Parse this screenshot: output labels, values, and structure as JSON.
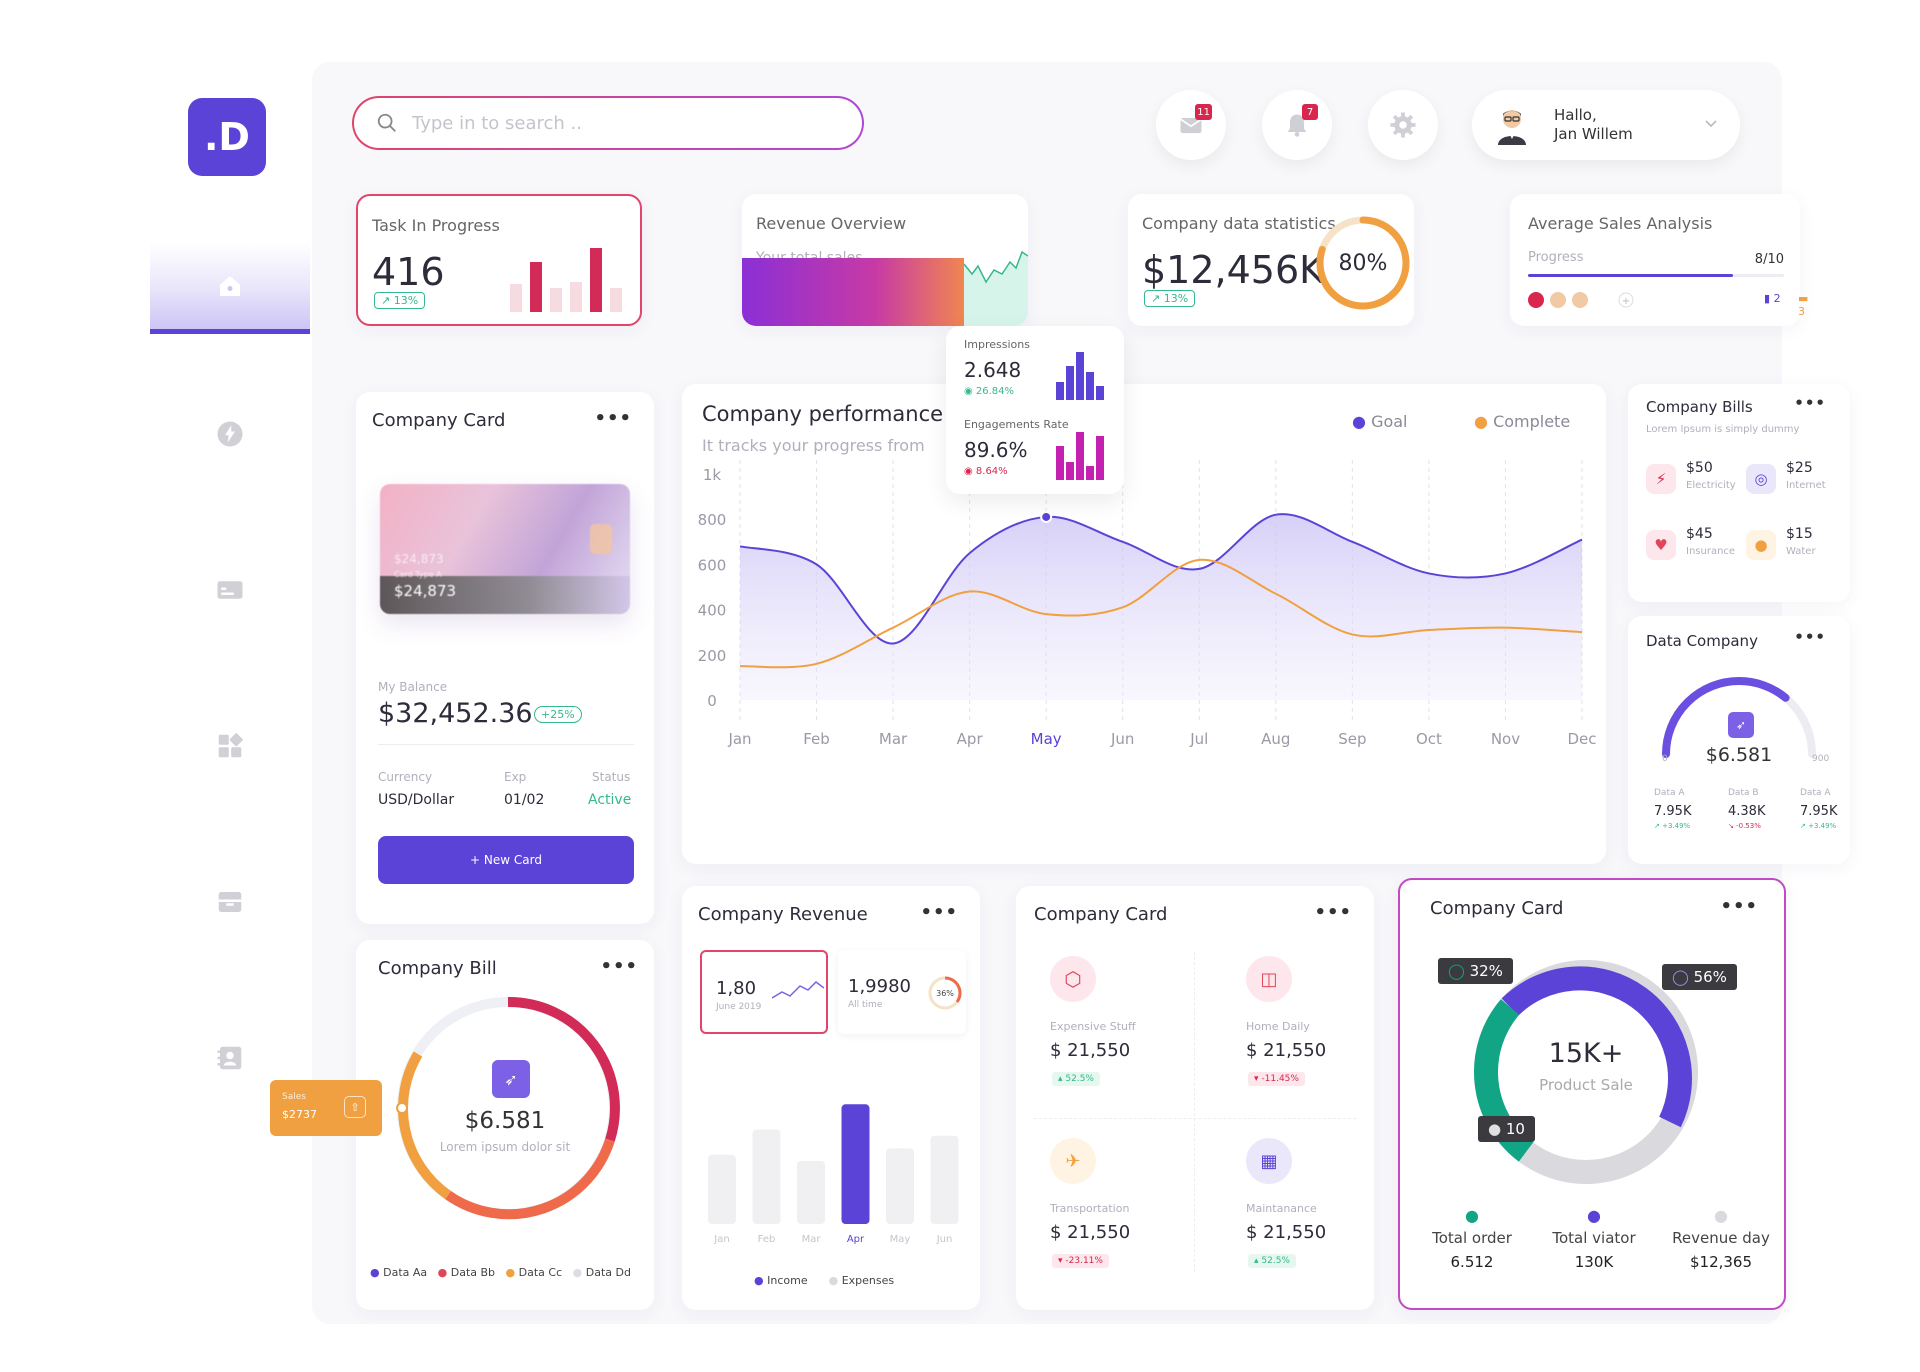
{
  "sidebar": {
    "logo": ".D"
  },
  "search": {
    "placeholder": "Type in to search .."
  },
  "header": {
    "mail_badge": "11",
    "notif_badge": "7",
    "greeting": "Hallo,",
    "user_name": "Jan Willem"
  },
  "task": {
    "title": "Task In Progress",
    "value": "416",
    "change": "13%"
  },
  "revenue": {
    "title": "Revenue Overview",
    "subtitle": "Your total sales"
  },
  "company_stats": {
    "title": "Company data statistics",
    "value": "$12,456K",
    "change": "13%",
    "percent": "80%",
    "progress": 0.8
  },
  "avg_sales": {
    "title": "Average Sales Analysis",
    "progress_label": "Progress",
    "progress_value": "8/10",
    "progress": 0.8,
    "doc_count": "2",
    "chat_count": "3"
  },
  "popup": {
    "impressions_label": "Impressions",
    "impressions_value": "2.648",
    "impressions_change": "26.84%",
    "engagement_label": "Engagements Rate",
    "engagement_value": "89.6%",
    "engagement_change": "8.64%"
  },
  "company_card": {
    "title": "Company Card",
    "card_amount_back": "$24,873",
    "card_type": "Card Type A",
    "card_amount": "$24,873",
    "balance_label": "My Balance",
    "balance": "$32,452.36",
    "balance_change": "+25%",
    "currency_label": "Currency",
    "exp_label": "Exp",
    "status_label": "Status",
    "currency": "USD/Dollar",
    "exp": "01/02",
    "status": "Active",
    "button": "+ New Card"
  },
  "performance": {
    "title": "Company performance",
    "subtitle": "It tracks your progress from",
    "legend_goal": "Goal",
    "legend_complete": "Complete"
  },
  "chart_data": {
    "type": "area",
    "categories": [
      "Jan",
      "Feb",
      "Mar",
      "Apr",
      "May",
      "Jun",
      "Jul",
      "Aug",
      "Sep",
      "Oct",
      "Nov",
      "Dec"
    ],
    "y_ticks": [
      "1k",
      "800",
      "600",
      "400",
      "200",
      "0"
    ],
    "ylim": [
      0,
      1000
    ],
    "highlight": "May",
    "series": [
      {
        "name": "Goal",
        "values": [
          680,
          600,
          250,
          650,
          810,
          700,
          580,
          820,
          700,
          560,
          560,
          710
        ],
        "color": "#5a43d6"
      },
      {
        "name": "Complete",
        "values": [
          150,
          160,
          320,
          480,
          380,
          410,
          620,
          470,
          290,
          310,
          320,
          300
        ],
        "color": "#f0a040"
      }
    ]
  },
  "bills": {
    "title": "Company Bills",
    "subtitle": "Lorem Ipsum is simply dummy",
    "items": [
      {
        "amount": "$50",
        "label": "Electricity"
      },
      {
        "amount": "$25",
        "label": "Internet"
      },
      {
        "amount": "$45",
        "label": "Insurance"
      },
      {
        "amount": "$15",
        "label": "Water"
      }
    ]
  },
  "data_company": {
    "title": "Data Company",
    "value": "$6.581",
    "min": "0",
    "max": "900",
    "progress": 0.72,
    "stats": [
      {
        "label": "Data A",
        "value": "7.95K",
        "change": "+3.49%"
      },
      {
        "label": "Data B",
        "value": "4.38K",
        "change": "-0.53%"
      },
      {
        "label": "Data A",
        "value": "7.95K",
        "change": "+3.49%"
      }
    ]
  },
  "company_bill": {
    "title": "Company Bill",
    "value": "$6.581",
    "subtitle": "Lorem ipsum dolor sit",
    "tooltip_label": "Sales",
    "tooltip_value": "$2737",
    "legend": [
      "Data Aa",
      "Data Bb",
      "Data Cc",
      "Data Dd"
    ],
    "legend_colors": [
      "#5a43d6",
      "#e0455a",
      "#f0a040",
      "#dddde4"
    ]
  },
  "company_revenue": {
    "title": "Company Revenue",
    "box1_value": "1,80",
    "box1_label": "June 2019",
    "box2_value": "1,9980",
    "box2_label": "All time",
    "box2_percent": "36%",
    "months": [
      "Jan",
      "Feb",
      "Mar",
      "Apr",
      "May",
      "Jun"
    ],
    "values": [
      0.55,
      0.75,
      0.5,
      0.95,
      0.6,
      0.7
    ],
    "highlight": "Apr",
    "legend_income": "Income",
    "legend_expenses": "Expenses"
  },
  "company_card2": {
    "title": "Company Card",
    "items": [
      {
        "label": "Expensive Stuff",
        "value": "$ 21,550",
        "change": "52.5%",
        "up": true
      },
      {
        "label": "Home Daily",
        "value": "$ 21,550",
        "change": "-11.45%",
        "up": false
      },
      {
        "label": "Transportation",
        "value": "$ 21,550",
        "change": "-23.11%",
        "up": false
      },
      {
        "label": "Maintanance",
        "value": "$ 21,550",
        "change": "52.5%",
        "up": true
      }
    ]
  },
  "company_card3": {
    "title": "Company Card",
    "center_value": "15K+",
    "center_label": "Product Sale",
    "tag_green": "32%",
    "tag_purple": "56%",
    "tag_gray": "10",
    "stats": [
      {
        "label": "Total order",
        "value": "6.512",
        "color": "#11a586"
      },
      {
        "label": "Total viator",
        "value": "130K",
        "color": "#5a43d6"
      },
      {
        "label": "Revenue day",
        "value": "$12,365",
        "color": "#d9d9de"
      }
    ]
  }
}
